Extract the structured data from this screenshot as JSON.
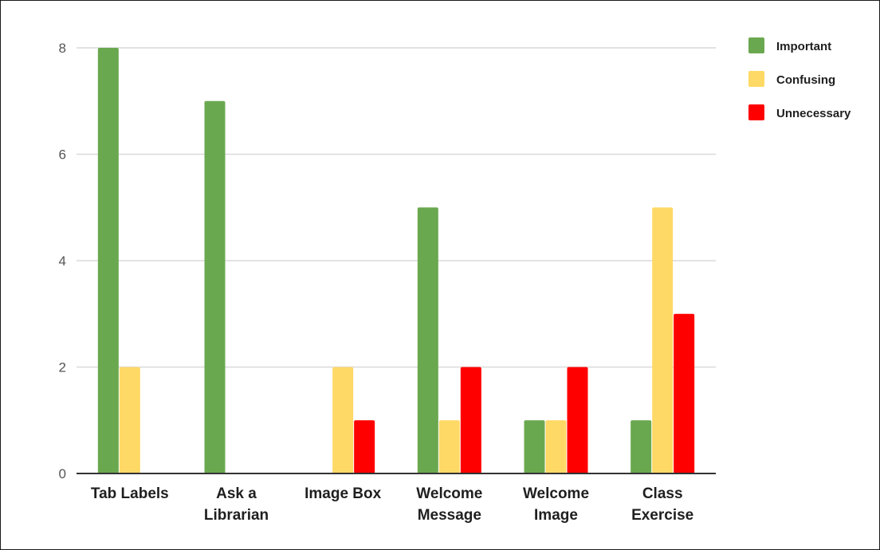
{
  "chart_data": {
    "type": "bar",
    "title": "",
    "xlabel": "",
    "ylabel": "",
    "ylim": [
      0,
      8
    ],
    "yticks": [
      0,
      2,
      4,
      6,
      8
    ],
    "grid": true,
    "legend_position": "top-right",
    "categories": [
      [
        "Tab Labels"
      ],
      [
        "Ask a",
        "Librarian"
      ],
      [
        "Image Box"
      ],
      [
        "Welcome",
        "Message"
      ],
      [
        "Welcome",
        "Image"
      ],
      [
        "Class",
        "Exercise"
      ]
    ],
    "series": [
      {
        "name": "Important",
        "color": "#6aa84f",
        "values": [
          8,
          7,
          0,
          5,
          1,
          1
        ]
      },
      {
        "name": "Confusing",
        "color": "#ffd966",
        "values": [
          2,
          0,
          2,
          1,
          1,
          5
        ]
      },
      {
        "name": "Unnecessary",
        "color": "#ff0000",
        "values": [
          0,
          0,
          1,
          2,
          2,
          3
        ]
      }
    ]
  }
}
